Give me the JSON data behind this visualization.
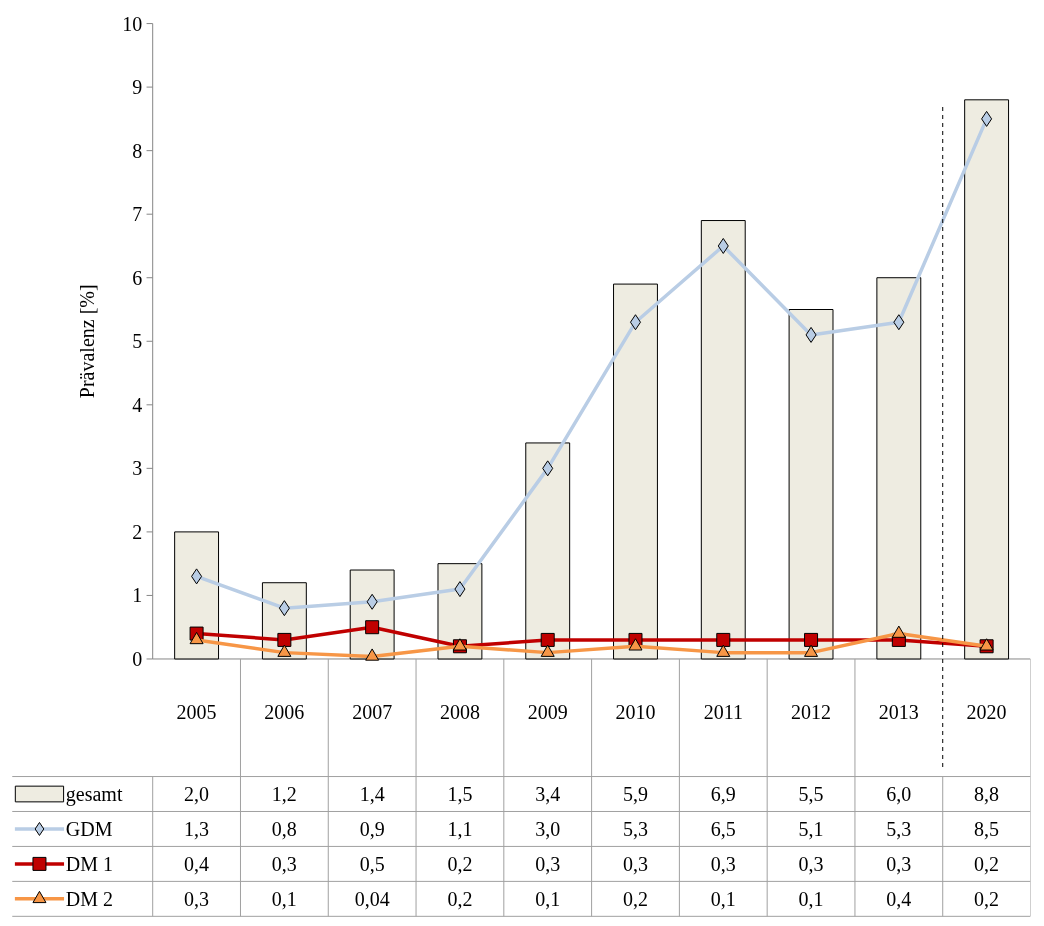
{
  "chart_data": {
    "type": "bar",
    "ylabel": "Prävalenz [%]",
    "categories": [
      "2005",
      "2006",
      "2007",
      "2008",
      "2009",
      "2010",
      "2011",
      "2012",
      "2013",
      "2020"
    ],
    "ylim": [
      0,
      10
    ],
    "yticks": [
      0,
      1,
      2,
      3,
      4,
      5,
      6,
      7,
      8,
      9,
      10
    ],
    "legend": "bottom",
    "series": [
      {
        "name": "gesamt",
        "color": "#eeece1",
        "values": [
          2.0,
          1.2,
          1.4,
          1.5,
          3.4,
          5.9,
          6.9,
          5.5,
          6.0,
          8.8
        ],
        "value_labels": [
          "2,0",
          "1,2",
          "1,4",
          "1,5",
          "3,4",
          "5,9",
          "6,9",
          "5,5",
          "6,0",
          "8,8"
        ]
      },
      {
        "name": "GDM",
        "type": "line",
        "color": "#b9cde5",
        "marker": "diamond",
        "values": [
          1.3,
          0.8,
          0.9,
          1.1,
          3.0,
          5.3,
          6.5,
          5.1,
          5.3,
          8.5
        ],
        "value_labels": [
          "1,3",
          "0,8",
          "0,9",
          "1,1",
          "3,0",
          "5,3",
          "6,5",
          "5,1",
          "5,3",
          "8,5"
        ]
      },
      {
        "name": "DM 1",
        "type": "line",
        "color": "#c00000",
        "marker": "square",
        "values": [
          0.4,
          0.3,
          0.5,
          0.2,
          0.3,
          0.3,
          0.3,
          0.3,
          0.3,
          0.2
        ],
        "value_labels": [
          "0,4",
          "0,3",
          "0,5",
          "0,2",
          "0,3",
          "0,3",
          "0,3",
          "0,3",
          "0,3",
          "0,2"
        ]
      },
      {
        "name": "DM 2",
        "type": "line",
        "color": "#f79646",
        "marker": "triangle",
        "values": [
          0.3,
          0.1,
          0.04,
          0.2,
          0.1,
          0.2,
          0.1,
          0.1,
          0.4,
          0.2
        ],
        "value_labels": [
          "0,3",
          "0,1",
          "0,04",
          "0,2",
          "0,1",
          "0,2",
          "0,1",
          "0,1",
          "0,4",
          "0,2"
        ]
      }
    ]
  }
}
